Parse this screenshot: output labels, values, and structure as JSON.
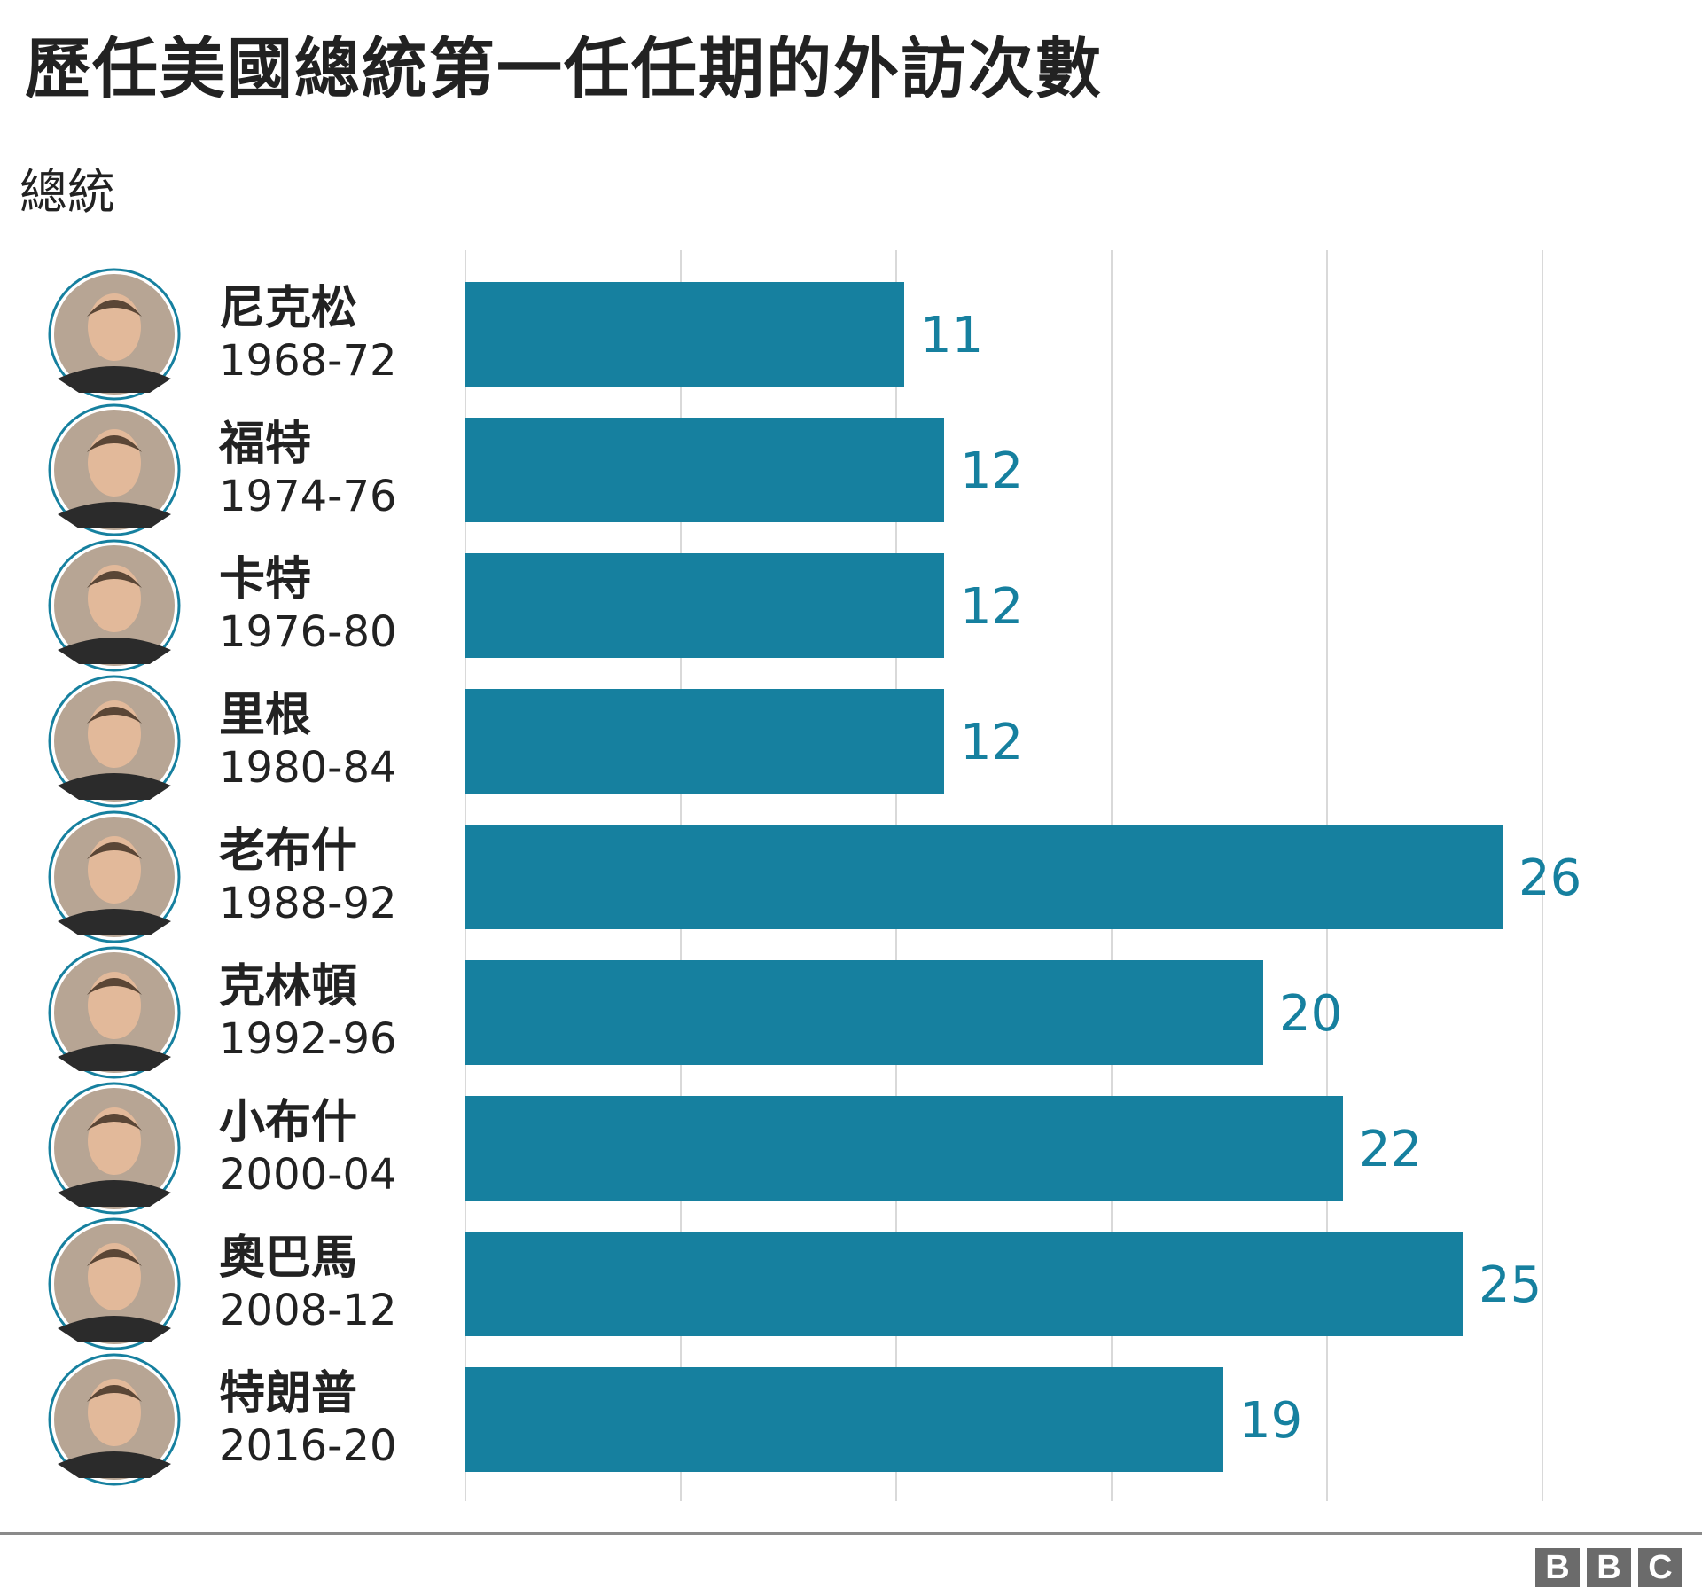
{
  "header": {
    "title": "歷任美國總統第一任任期的外訪次數",
    "column_label": "總統"
  },
  "colors": {
    "bar": "#16809f",
    "value_label": "#16809f",
    "gridline": "#d9d9d9",
    "text": "#222222"
  },
  "footer": {
    "brand_letters": [
      "B",
      "B",
      "C"
    ]
  },
  "chart_data": {
    "type": "bar",
    "orientation": "horizontal",
    "title": "歷任美國總統第一任任期的外訪次數",
    "category_axis_label": "總統",
    "categories": [
      {
        "name": "尼克松",
        "term": "1968-72"
      },
      {
        "name": "福特",
        "term": "1974-76"
      },
      {
        "name": "卡特",
        "term": "1976-80"
      },
      {
        "name": "里根",
        "term": "1980-84"
      },
      {
        "name": "老布什",
        "term": "1988-92"
      },
      {
        "name": "克林頓",
        "term": "1992-96"
      },
      {
        "name": "小布什",
        "term": "2000-04"
      },
      {
        "name": "奧巴馬",
        "term": "2008-12"
      },
      {
        "name": "特朗普",
        "term": "2016-20"
      }
    ],
    "values": [
      11,
      12,
      12,
      12,
      26,
      20,
      22,
      25,
      19
    ],
    "value_labels": [
      "11",
      "12",
      "12",
      "12",
      "26",
      "20",
      "22",
      "25",
      "19"
    ],
    "value_axis_range": [
      0,
      27
    ],
    "gridlines": true,
    "legend": "none"
  }
}
